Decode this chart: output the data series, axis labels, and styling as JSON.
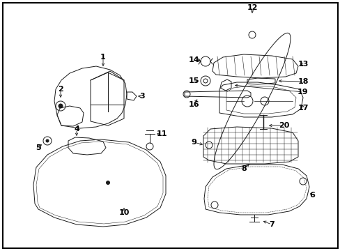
{
  "background_color": "#ffffff",
  "border_color": "#000000",
  "border_linewidth": 1.5,
  "fig_width": 4.89,
  "fig_height": 3.6,
  "dpi": 100,
  "lc": "#1a1a1a",
  "lw": 0.7
}
